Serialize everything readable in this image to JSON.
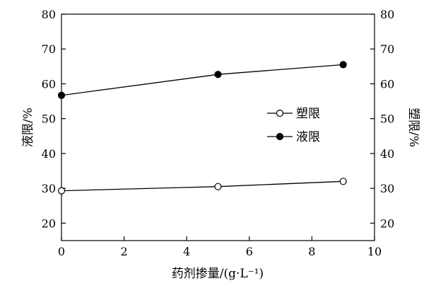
{
  "chart_data": {
    "type": "line",
    "xlabel": "药剂掺量/(g·L⁻¹)",
    "ylabel_left": "液限/%",
    "ylabel_right": "塑限/%",
    "xlim": [
      0,
      10
    ],
    "ylim": [
      15,
      80
    ],
    "xticks": [
      "0",
      "2",
      "4",
      "6",
      "8",
      "10"
    ],
    "yticks": [
      "20",
      "30",
      "40",
      "50",
      "60",
      "70",
      "80"
    ],
    "legend_position": "center-right",
    "grid": false,
    "series": [
      {
        "name": "塑限",
        "marker": "open-circle",
        "x": [
          0,
          5,
          9
        ],
        "y": [
          29.3,
          30.5,
          32.0
        ]
      },
      {
        "name": "液限",
        "marker": "filled-circle",
        "x": [
          0,
          5,
          9
        ],
        "y": [
          56.7,
          62.7,
          65.5
        ]
      }
    ]
  }
}
